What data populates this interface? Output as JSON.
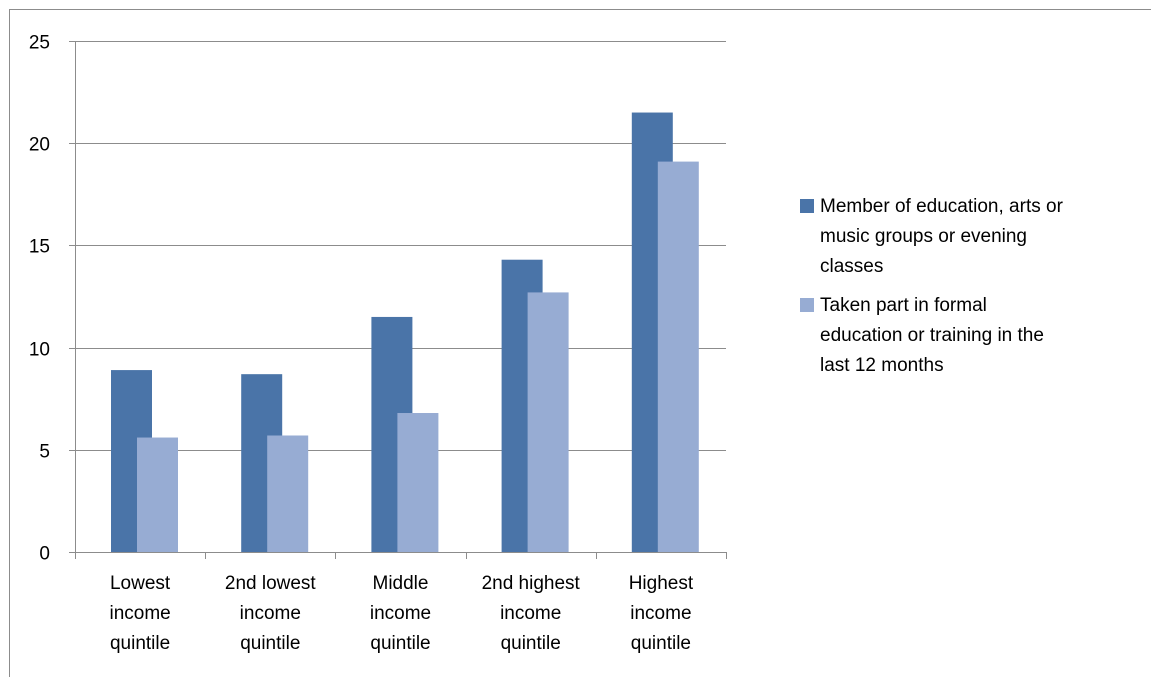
{
  "chart_data": {
    "type": "bar",
    "categories": [
      [
        "Lowest",
        "income",
        "quintile"
      ],
      [
        "2nd lowest",
        "income",
        "quintile"
      ],
      [
        "Middle",
        "income",
        "quintile"
      ],
      [
        "2nd highest",
        "income",
        "quintile"
      ],
      [
        "Highest",
        "income",
        "quintile"
      ]
    ],
    "series": [
      {
        "name": "Member of education, arts or music groups or evening classes",
        "values": [
          8.9,
          8.7,
          11.5,
          14.3,
          21.5
        ],
        "color": "#4a74a8"
      },
      {
        "name": "Taken part in formal education or training in the last 12 months",
        "values": [
          5.6,
          5.7,
          6.8,
          12.7,
          19.1
        ],
        "color": "#97acd3"
      }
    ],
    "ylim": [
      0,
      25
    ],
    "yticks": [
      "0",
      "5",
      "10",
      "15",
      "20",
      "25"
    ],
    "grid": true,
    "legend_position": "right",
    "title": "",
    "xlabel": "",
    "ylabel": ""
  },
  "legend": {
    "items": [
      {
        "lines": [
          "Member of education, arts or",
          "music groups or evening",
          "classes"
        ]
      },
      {
        "lines": [
          "Taken part in formal",
          "education or training in the",
          "last 12 months"
        ]
      }
    ]
  }
}
